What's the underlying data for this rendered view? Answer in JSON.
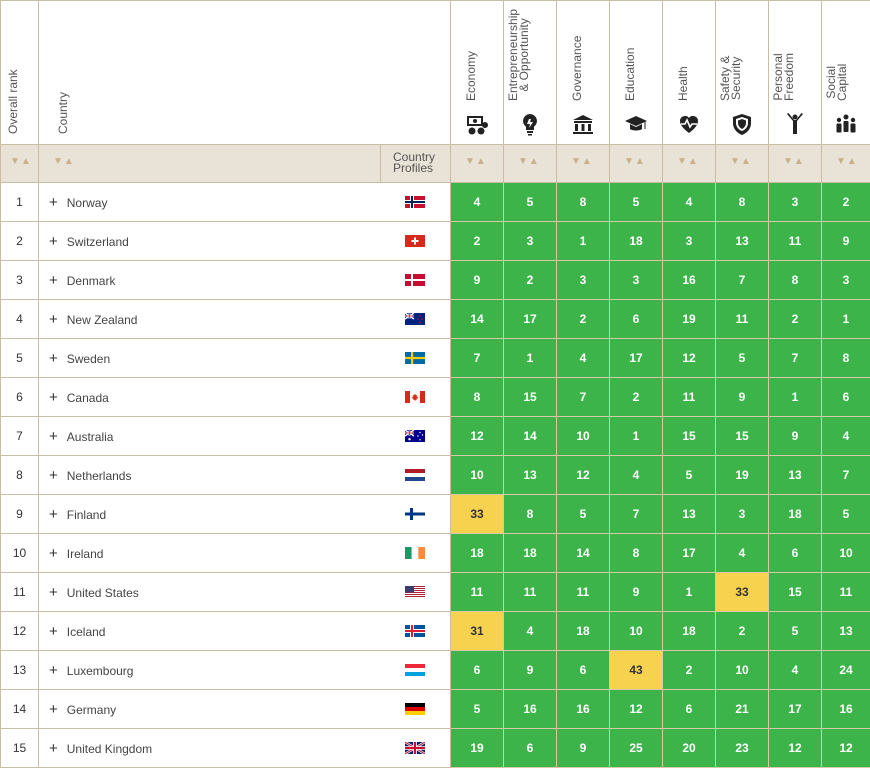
{
  "header": {
    "overall_rank": "Overall rank",
    "country": "Country",
    "country_profiles": "Country\nProfiles",
    "categories": [
      {
        "label": "Economy",
        "icon": "money-icon"
      },
      {
        "label": "Entrepreneurship\n& Opportunity",
        "icon": "lightbulb-icon"
      },
      {
        "label": "Governance",
        "icon": "government-building-icon"
      },
      {
        "label": "Education",
        "icon": "graduation-cap-icon"
      },
      {
        "label": "Health",
        "icon": "heart-pulse-icon"
      },
      {
        "label": "Safety &\nSecurity",
        "icon": "shield-icon"
      },
      {
        "label": "Personal\nFreedom",
        "icon": "raised-arms-person-icon"
      },
      {
        "label": "Social\nCapital",
        "icon": "people-group-icon"
      }
    ],
    "sort_arrows": "▼▲"
  },
  "colors": {
    "good": "#3cb44a",
    "warn": "#f7d24e"
  },
  "rows": [
    {
      "rank": "1",
      "country": "Norway",
      "flag": "norway-flag-icon",
      "scores": [
        "4",
        "5",
        "8",
        "5",
        "4",
        "8",
        "3",
        "2"
      ],
      "warn": []
    },
    {
      "rank": "2",
      "country": "Switzerland",
      "flag": "switzerland-flag-icon",
      "scores": [
        "2",
        "3",
        "1",
        "18",
        "3",
        "13",
        "11",
        "9"
      ],
      "warn": []
    },
    {
      "rank": "3",
      "country": "Denmark",
      "flag": "denmark-flag-icon",
      "scores": [
        "9",
        "2",
        "3",
        "3",
        "16",
        "7",
        "8",
        "3"
      ],
      "warn": []
    },
    {
      "rank": "4",
      "country": "New Zealand",
      "flag": "new-zealand-flag-icon",
      "scores": [
        "14",
        "17",
        "2",
        "6",
        "19",
        "11",
        "2",
        "1"
      ],
      "warn": []
    },
    {
      "rank": "5",
      "country": "Sweden",
      "flag": "sweden-flag-icon",
      "scores": [
        "7",
        "1",
        "4",
        "17",
        "12",
        "5",
        "7",
        "8"
      ],
      "warn": []
    },
    {
      "rank": "6",
      "country": "Canada",
      "flag": "canada-flag-icon",
      "scores": [
        "8",
        "15",
        "7",
        "2",
        "11",
        "9",
        "1",
        "6"
      ],
      "warn": []
    },
    {
      "rank": "7",
      "country": "Australia",
      "flag": "australia-flag-icon",
      "scores": [
        "12",
        "14",
        "10",
        "1",
        "15",
        "15",
        "9",
        "4"
      ],
      "warn": []
    },
    {
      "rank": "8",
      "country": "Netherlands",
      "flag": "netherlands-flag-icon",
      "scores": [
        "10",
        "13",
        "12",
        "4",
        "5",
        "19",
        "13",
        "7"
      ],
      "warn": []
    },
    {
      "rank": "9",
      "country": "Finland",
      "flag": "finland-flag-icon",
      "scores": [
        "33",
        "8",
        "5",
        "7",
        "13",
        "3",
        "18",
        "5"
      ],
      "warn": [
        0
      ]
    },
    {
      "rank": "10",
      "country": "Ireland",
      "flag": "ireland-flag-icon",
      "scores": [
        "18",
        "18",
        "14",
        "8",
        "17",
        "4",
        "6",
        "10"
      ],
      "warn": []
    },
    {
      "rank": "11",
      "country": "United States",
      "flag": "united-states-flag-icon",
      "scores": [
        "11",
        "11",
        "11",
        "9",
        "1",
        "33",
        "15",
        "11"
      ],
      "warn": [
        5
      ]
    },
    {
      "rank": "12",
      "country": "Iceland",
      "flag": "iceland-flag-icon",
      "scores": [
        "31",
        "4",
        "18",
        "10",
        "18",
        "2",
        "5",
        "13"
      ],
      "warn": [
        0
      ]
    },
    {
      "rank": "13",
      "country": "Luxembourg",
      "flag": "luxembourg-flag-icon",
      "scores": [
        "6",
        "9",
        "6",
        "43",
        "2",
        "10",
        "4",
        "24"
      ],
      "warn": [
        3
      ]
    },
    {
      "rank": "14",
      "country": "Germany",
      "flag": "germany-flag-icon",
      "scores": [
        "5",
        "16",
        "16",
        "12",
        "6",
        "21",
        "17",
        "16"
      ],
      "warn": []
    },
    {
      "rank": "15",
      "country": "United Kingdom",
      "flag": "united-kingdom-flag-icon",
      "scores": [
        "19",
        "6",
        "9",
        "25",
        "20",
        "23",
        "12",
        "12"
      ],
      "warn": []
    }
  ]
}
